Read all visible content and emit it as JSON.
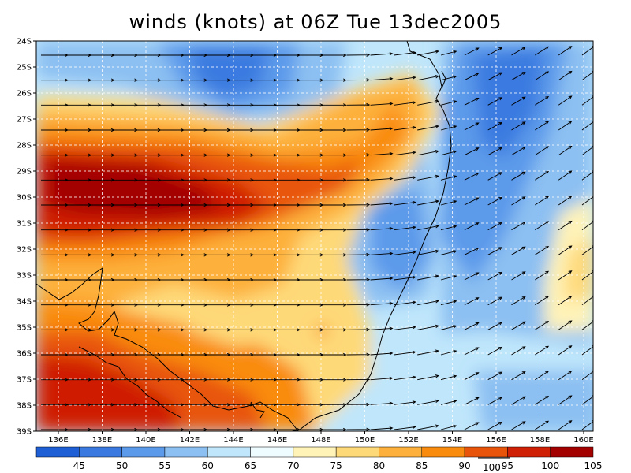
{
  "title": "winds (knots) at 06Z Tue 13dec2005",
  "lat_labels": [
    "24S",
    "25S",
    "26S",
    "27S",
    "28S",
    "29S",
    "30S",
    "31S",
    "32S",
    "33S",
    "34S",
    "35S",
    "36S",
    "37S",
    "38S",
    "39S"
  ],
  "lon_labels": [
    "136E",
    "138E",
    "140E",
    "142E",
    "144E",
    "146E",
    "148E",
    "150E",
    "152E",
    "154E",
    "156E",
    "158E",
    "160E"
  ],
  "colorbar": {
    "colors": [
      "#1e5fd6",
      "#3a7ae0",
      "#5b9aea",
      "#8cc0f2",
      "#bfe6fb",
      "#eefbff",
      "#fff3b8",
      "#fed978",
      "#fdb03b",
      "#f98b0e",
      "#e8540a",
      "#cf1f05",
      "#a30000"
    ],
    "labels": [
      "45",
      "50",
      "55",
      "60",
      "65",
      "70",
      "75",
      "80",
      "85",
      "90",
      "95",
      "100",
      "105"
    ]
  },
  "reference_vector": {
    "label": "100"
  },
  "colors": {
    "coastline": "#000000",
    "vector": "#000000",
    "gridline": "#ffffff",
    "frame": "#000000"
  }
}
